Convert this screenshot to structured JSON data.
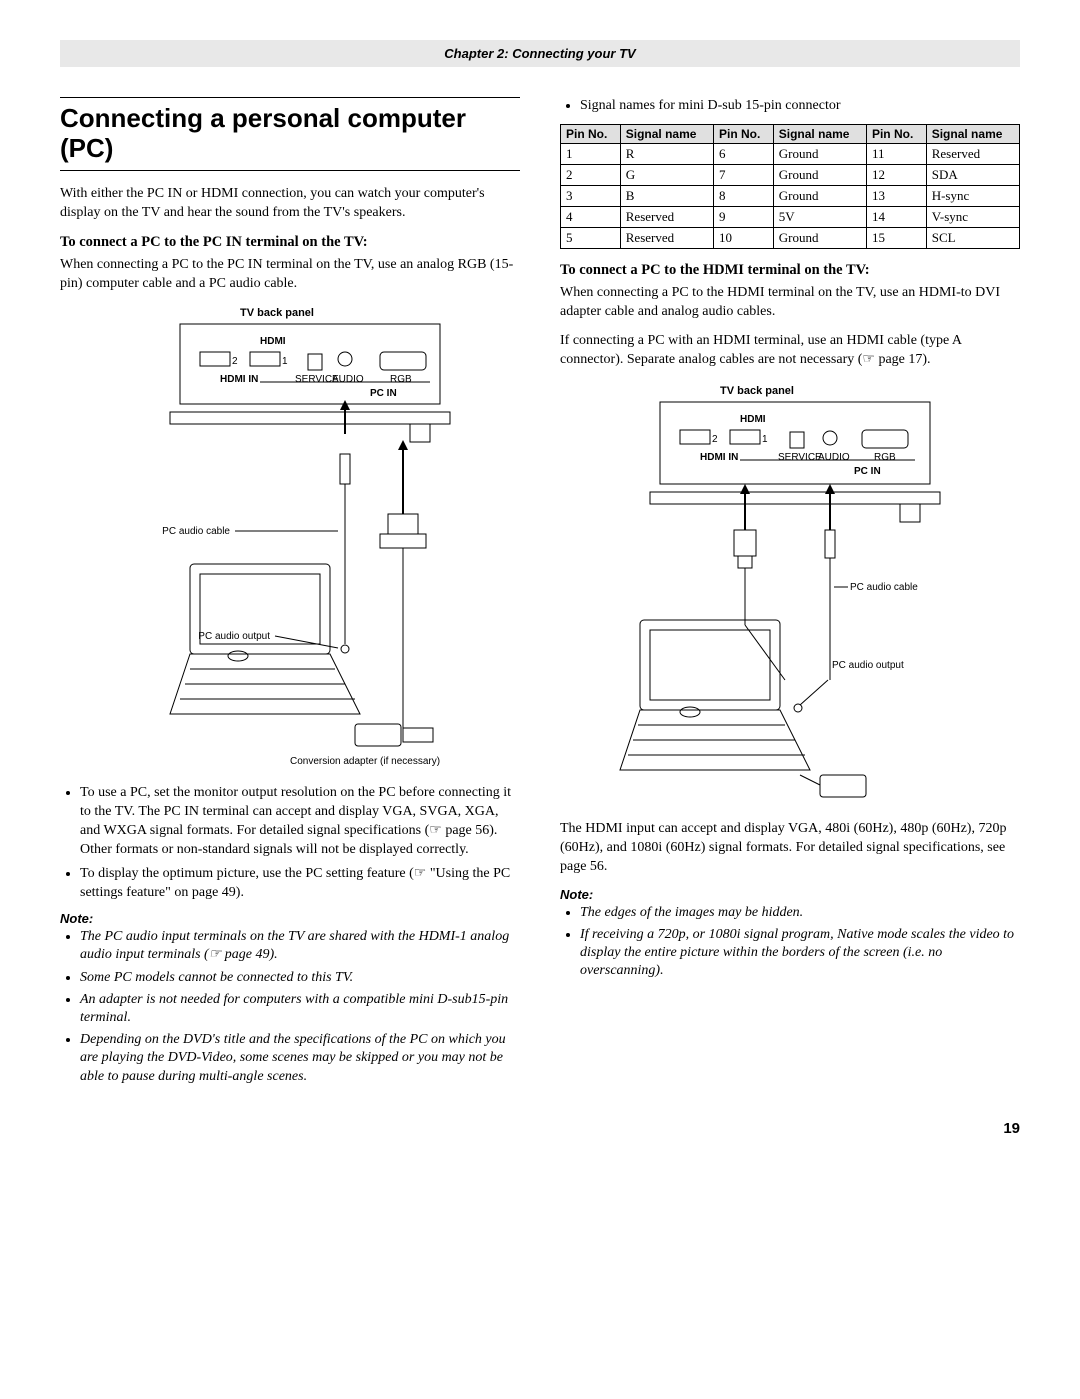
{
  "chapter_header": "Chapter 2: Connecting your TV",
  "title": "Connecting a personal computer (PC)",
  "intro": "With either the PC IN or HDMI connection, you can watch your computer's display on the TV and hear the sound from the TV's speakers.",
  "sec_a_head": "To connect a PC to the PC IN terminal on the TV:",
  "sec_a_body": "When connecting a PC to the PC IN terminal on the TV, use an analog RGB (15-pin) computer cable and a PC audio cable.",
  "diagram1": {
    "tv_back": "TV back panel",
    "hdmi_in": "HDMI IN",
    "service": "SERVICE",
    "audio": "AUDIO",
    "rgb": "RGB",
    "pc_in": "PC IN",
    "pc_audio_cable": "PC audio cable",
    "pc_audio_output": "PC audio output",
    "conversion": "Conversion adapter (if necessary)"
  },
  "bullets_a": [
    "To use a PC, set the monitor output resolution on the PC before connecting it to the TV. The PC IN terminal can accept and display VGA, SVGA, XGA, and WXGA signal formats. For detailed signal specifications (☞ page 56). Other formats or non-standard signals will not be displayed correctly.",
    "To display the optimum picture, use the PC setting feature (☞ \"Using the PC settings feature\" on page 49)."
  ],
  "note_a_head": "Note:",
  "note_a": [
    "The PC audio input terminals on the TV are shared with the HDMI-1 analog audio input terminals (☞ page 49).",
    "Some PC models cannot be connected to this TV.",
    "An adapter is not needed for computers with a compatible mini D-sub15-pin terminal.",
    "Depending on the DVD's title and the specifications of the PC on which you are playing the DVD-Video, some scenes may be skipped or you may not be able to pause during multi-angle scenes."
  ],
  "signal_bullet": "Signal names for mini D-sub 15-pin connector",
  "pin_table": {
    "headers": [
      "Pin No.",
      "Signal name",
      "Pin No.",
      "Signal name",
      "Pin No.",
      "Signal name"
    ],
    "rows": [
      [
        "1",
        "R",
        "6",
        "Ground",
        "11",
        "Reserved"
      ],
      [
        "2",
        "G",
        "7",
        "Ground",
        "12",
        "SDA"
      ],
      [
        "3",
        "B",
        "8",
        "Ground",
        "13",
        "H-sync"
      ],
      [
        "4",
        "Reserved",
        "9",
        "5V",
        "14",
        "V-sync"
      ],
      [
        "5",
        "Reserved",
        "10",
        "Ground",
        "15",
        "SCL"
      ]
    ]
  },
  "sec_b_head": "To connect a PC to the HDMI terminal on the TV:",
  "sec_b_body1": "When connecting a PC to the HDMI terminal on the TV, use an HDMI-to DVI adapter cable and analog audio cables.",
  "sec_b_body2": "If connecting a PC with an HDMI terminal, use an HDMI cable (type A connector). Separate analog cables are not necessary (☞ page 17).",
  "diagram2": {
    "tv_back": "TV back panel",
    "hdmi_in": "HDMI IN",
    "service": "SERVICE",
    "audio": "AUDIO",
    "rgb": "RGB",
    "pc_in": "PC IN",
    "pc_audio_cable": "PC audio cable",
    "pc_audio_output": "PC audio output"
  },
  "hdmi_para": "The HDMI input can accept and display VGA, 480i (60Hz), 480p (60Hz), 720p (60Hz), and 1080i (60Hz) signal formats. For detailed signal specifications, see page 56.",
  "note_b_head": "Note:",
  "note_b": [
    "The edges of the images may be hidden.",
    "If receiving a 720p, or 1080i signal program, Native mode scales the video to display the entire picture within the borders of the screen (i.e. no overscanning)."
  ],
  "page_number": "19",
  "colors": {
    "header_bg": "#e8e8e8",
    "table_header_bg": "#e0e0e0",
    "line": "#000000"
  }
}
